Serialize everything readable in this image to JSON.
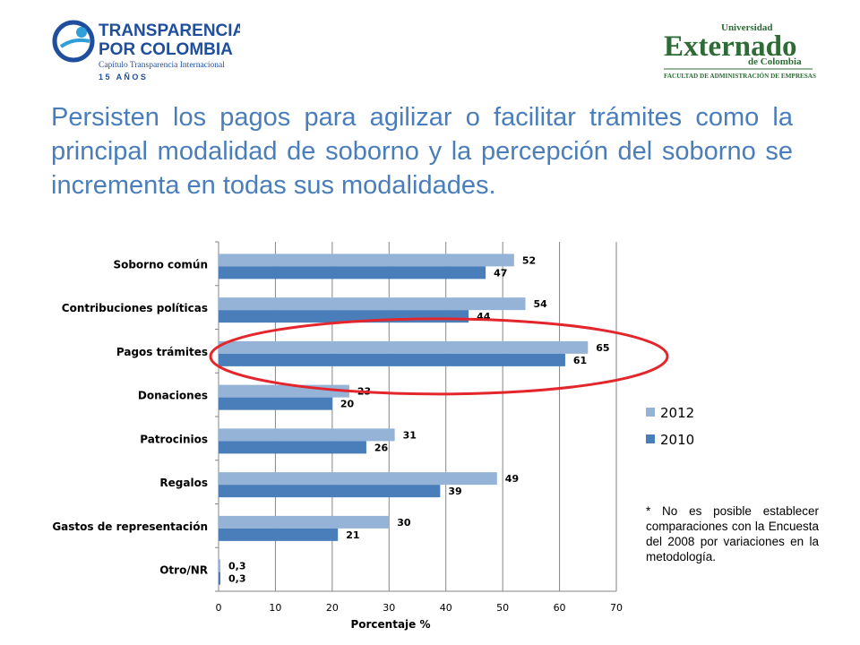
{
  "logos": {
    "left": {
      "line1": "TRANSPARENCIA",
      "line2": "POR COLOMBIA",
      "line3": "Capítulo Transparencia Internacional",
      "line4": "1 5   A Ñ O S",
      "primary_color": "#1f4e9c",
      "accent_color": "#2e9fd8"
    },
    "right": {
      "line1": "Universidad",
      "line2": "Externado",
      "line3": "de Colombia",
      "line4": "FACULTAD DE ADMINISTRACIÓN DE EMPRESAS",
      "color": "#2e6b36"
    }
  },
  "title": "Persisten los pagos para agilizar o facilitar trámites como la principal modalidad de soborno y la percepción del soborno se incrementa en todas sus modalidades.",
  "note": "* No es posible establecer comparaciones con la Encuesta del 2008 por variaciones en la metodología.",
  "chart_data": {
    "type": "bar",
    "orientation": "horizontal",
    "categories": [
      "Soborno común",
      "Contribuciones políticas",
      "Pagos trámites",
      "Donaciones",
      "Patrocinios",
      "Regalos",
      "Gastos de representación",
      "Otro/NR"
    ],
    "series": [
      {
        "name": "2012",
        "values": [
          52,
          54,
          65,
          23,
          31,
          49,
          30,
          0.3
        ],
        "labels": [
          "52",
          "54",
          "65",
          "23",
          "31",
          "49",
          "30",
          "0,3"
        ],
        "color": "#95b3d7"
      },
      {
        "name": "2010",
        "values": [
          47,
          44,
          61,
          20,
          26,
          39,
          21,
          0.3
        ],
        "labels": [
          "47",
          "44",
          "61",
          "20",
          "26",
          "39",
          "21",
          "0,3"
        ],
        "color": "#4a7ebb"
      }
    ],
    "xlabel": "Porcentaje %",
    "xlim": [
      0,
      70
    ],
    "xticks": [
      0,
      10,
      20,
      30,
      40,
      50,
      60,
      70
    ],
    "grid": true,
    "legend": "right",
    "highlight": {
      "category": "Pagos trámites",
      "shape": "ellipse",
      "color": "#e3262c"
    }
  }
}
